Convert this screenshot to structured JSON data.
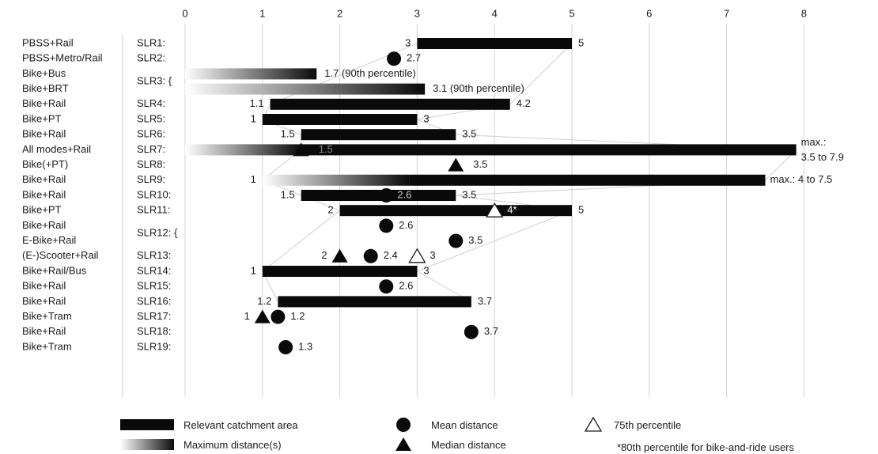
{
  "chart_data": {
    "type": "bar",
    "xlim": [
      0,
      8
    ],
    "x_ticks": [
      "0",
      "1",
      "2",
      "3",
      "4",
      "5",
      "6",
      "7",
      "8"
    ],
    "grid": "vertical",
    "legend_placement": "bottom",
    "legend": {
      "bar": "Relevant catchment area",
      "gradient": "Maximum distance(s)",
      "mean": "Mean distance",
      "median": "Median distance",
      "p75": "75th percentile",
      "footnote": "*80th percentile for bike-and-ride users"
    },
    "rows": [
      {
        "mode": "PBSS+Rail",
        "study": "SLR1:"
      },
      {
        "mode": "PBSS+Metro/Rail",
        "study": "SLR2:"
      },
      {
        "mode": "Bike+Bus",
        "study": "SLR3: {"
      },
      {
        "mode": "Bike+BRT",
        "study": ""
      },
      {
        "mode": "Bike+Rail",
        "study": "SLR4:"
      },
      {
        "mode": "Bike+PT",
        "study": "SLR5:"
      },
      {
        "mode": "Bike+Rail",
        "study": "SLR6:"
      },
      {
        "mode": "All modes+Rail",
        "study": "SLR7:"
      },
      {
        "mode": "Bike(+PT)",
        "study": "SLR8:"
      },
      {
        "mode": "Bike+Rail",
        "study": "SLR9:"
      },
      {
        "mode": "Bike+Rail",
        "study": "SLR10:"
      },
      {
        "mode": "Bike+PT",
        "study": "SLR11:"
      },
      {
        "mode": "Bike+Rail",
        "study": "SLR12: {"
      },
      {
        "mode": "E-Bike+Rail",
        "study": ""
      },
      {
        "mode": "(E-)Scooter+Rail",
        "study": "SLR13:"
      },
      {
        "mode": "Bike+Rail/Bus",
        "study": "SLR14:"
      },
      {
        "mode": "Bike+Rail",
        "study": "SLR15:"
      },
      {
        "mode": "Bike+Rail",
        "study": "SLR16:"
      },
      {
        "mode": "Bike+Tram",
        "study": "SLR17:"
      },
      {
        "mode": "Bike+Rail",
        "study": "SLR18:"
      },
      {
        "mode": "Bike+Tram",
        "study": "SLR19:"
      }
    ],
    "bars": [
      {
        "row": 0,
        "start": 3,
        "end": 5,
        "start_label": "3",
        "end_label": "5"
      },
      {
        "row": 4,
        "start": 1.1,
        "end": 4.2,
        "start_label": "1.1",
        "end_label": "4.2"
      },
      {
        "row": 5,
        "start": 1,
        "end": 3,
        "start_label": "1",
        "end_label": "3"
      },
      {
        "row": 6,
        "start": 1.5,
        "end": 3.5,
        "start_label": "1.5",
        "end_label": "3.5"
      },
      {
        "row": 7,
        "start": 1.5,
        "end": 7.9
      },
      {
        "row": 9,
        "start": 1,
        "end": 7.5
      },
      {
        "row": 10,
        "start": 1.5,
        "end": 3.5,
        "start_label": "1.5",
        "end_label": "3.5"
      },
      {
        "row": 11,
        "start": 2,
        "end": 5,
        "start_label": "2",
        "end_label": "5"
      },
      {
        "row": 15,
        "start": 1,
        "end": 3,
        "start_label": "1",
        "end_label": "3"
      },
      {
        "row": 17,
        "start": 1.2,
        "end": 3.7,
        "start_label": "1.2",
        "end_label": "3.7"
      }
    ],
    "gradients": [
      {
        "row": 2,
        "start": 0,
        "end": 1.7,
        "end_label": "1.7 (90th percentile)"
      },
      {
        "row": 3,
        "start": 0,
        "end": 3.1,
        "end_label": "3.1 (90th percentile)"
      },
      {
        "row": 7,
        "start": 0,
        "end": 1.5
      },
      {
        "row": 9,
        "start": 1,
        "end": 2.9,
        "start_label": "1"
      }
    ],
    "means": [
      {
        "row": 1,
        "value": 2.7,
        "label": "2.7"
      },
      {
        "row": 10,
        "value": 2.6,
        "label": "2.6",
        "label_inside": true
      },
      {
        "row": 12,
        "value": 2.6,
        "label": "2.6"
      },
      {
        "row": 13,
        "value": 3.5,
        "label": "3.5"
      },
      {
        "row": 14,
        "value": 2.4,
        "label": "2.4"
      },
      {
        "row": 16,
        "value": 2.6,
        "label": "2.6"
      },
      {
        "row": 18,
        "value": 1.2,
        "label": "1.2"
      },
      {
        "row": 19,
        "value": 3.7,
        "label": "3.7"
      },
      {
        "row": 20,
        "value": 1.3,
        "label": "1.3"
      }
    ],
    "medians": [
      {
        "row": 7,
        "value": 1.5,
        "label": "1.5",
        "label_inside": true
      },
      {
        "row": 8,
        "value": 3.5,
        "label": "3.5"
      },
      {
        "row": 14,
        "value": 2,
        "label": "2",
        "label_left": true
      },
      {
        "row": 18,
        "value": 1,
        "label": "1",
        "label_left": true
      }
    ],
    "p75": [
      {
        "row": 11,
        "value": 4,
        "label": "4*",
        "label_inside": true
      },
      {
        "row": 14,
        "value": 3,
        "label": "3"
      }
    ],
    "max_notes": [
      {
        "row": 7,
        "lines": [
          "max.:",
          "3.5 to 7.9"
        ]
      },
      {
        "row": 9,
        "lines": [
          "max.: 4 to 7.5"
        ]
      }
    ]
  }
}
